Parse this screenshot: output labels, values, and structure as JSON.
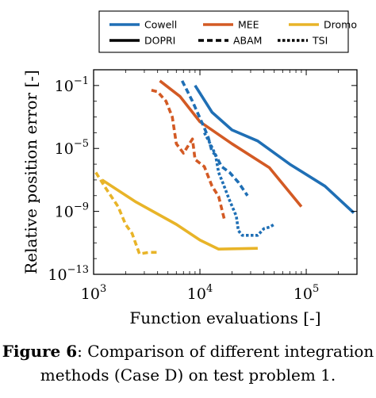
{
  "figure": {
    "caption_label": "Figure 6",
    "caption_text": ": Comparison of different integration methods (Case D) on test problem 1."
  },
  "chart_data": {
    "type": "line",
    "xlabel": "Function evaluations [-]",
    "ylabel": "Relative position error [-]",
    "xscale": "log",
    "yscale": "log",
    "xlim": [
      1000,
      300000
    ],
    "ylim": [
      1e-13,
      1
    ],
    "x_ticks": [
      {
        "value": 1000,
        "base": "10",
        "exp": "3"
      },
      {
        "value": 10000,
        "base": "10",
        "exp": "4"
      },
      {
        "value": 100000,
        "base": "10",
        "exp": "5"
      }
    ],
    "y_ticks": [
      {
        "value": 0.1,
        "base": "10",
        "exp": "−1"
      },
      {
        "value": 1e-05,
        "base": "10",
        "exp": "−5"
      },
      {
        "value": 1e-09,
        "base": "10",
        "exp": "−9"
      },
      {
        "value": 1e-13,
        "base": "10",
        "exp": "−13"
      }
    ],
    "grid": false,
    "legend_position": "top",
    "colors": {
      "Cowell": "#1f6fb5",
      "MEE": "#d35a24",
      "Dromo": "#e8b428"
    },
    "legend_methods": [
      "Cowell",
      "MEE",
      "Dromo"
    ],
    "legend_integrators": [
      "DOPRI",
      "ABAM",
      "TSI"
    ],
    "series": [
      {
        "method": "Cowell",
        "integrator": "DOPRI",
        "points": [
          [
            9000,
            0.1
          ],
          [
            13000,
            0.002
          ],
          [
            20000,
            0.00015
          ],
          [
            35000,
            3e-05
          ],
          [
            70000,
            1e-06
          ],
          [
            150000,
            4e-08
          ],
          [
            280000,
            8e-10
          ]
        ]
      },
      {
        "method": "MEE",
        "integrator": "DOPRI",
        "points": [
          [
            4200,
            0.2
          ],
          [
            6500,
            0.02
          ],
          [
            10000,
            0.0005
          ],
          [
            20000,
            2e-05
          ],
          [
            45000,
            6e-07
          ],
          [
            90000,
            2e-09
          ]
        ]
      },
      {
        "method": "Dromo",
        "integrator": "DOPRI",
        "points": [
          [
            1200,
            1e-07
          ],
          [
            2500,
            4e-09
          ],
          [
            6000,
            1.5e-10
          ],
          [
            10000,
            1.5e-11
          ],
          [
            15000,
            4e-12
          ],
          [
            35000,
            4.5e-12
          ]
        ]
      },
      {
        "method": "Cowell",
        "integrator": "ABAM",
        "points": [
          [
            6800,
            0.2
          ],
          [
            8500,
            0.01
          ],
          [
            11000,
            0.0002
          ],
          [
            12000,
            5e-05
          ],
          [
            13000,
            6e-06
          ],
          [
            14000,
            4e-06
          ],
          [
            16000,
            7e-07
          ],
          [
            19000,
            3e-07
          ],
          [
            23000,
            7e-08
          ],
          [
            28000,
            1e-08
          ]
        ]
      },
      {
        "method": "MEE",
        "integrator": "ABAM",
        "points": [
          [
            3500,
            0.05
          ],
          [
            4000,
            0.04
          ],
          [
            4800,
            0.01
          ],
          [
            5500,
            0.001
          ],
          [
            6000,
            2e-05
          ],
          [
            7000,
            5e-06
          ],
          [
            8500,
            4e-05
          ],
          [
            9000,
            2e-06
          ],
          [
            11000,
            7e-07
          ],
          [
            13000,
            4e-08
          ],
          [
            15000,
            9e-09
          ],
          [
            17000,
            3e-10
          ]
        ]
      },
      {
        "method": "Dromo",
        "integrator": "ABAM",
        "points": [
          [
            1050,
            3e-07
          ],
          [
            1300,
            3e-08
          ],
          [
            1700,
            2e-09
          ],
          [
            2000,
            1.5e-10
          ],
          [
            2300,
            4e-11
          ],
          [
            2700,
            2e-12
          ],
          [
            3300,
            2.5e-12
          ],
          [
            4000,
            2.5e-12
          ]
        ]
      },
      {
        "method": "Cowell",
        "integrator": "TSI",
        "points": [
          [
            11000,
            0.0001
          ],
          [
            12500,
            2e-05
          ],
          [
            14000,
            4e-06
          ],
          [
            15000,
            3e-07
          ],
          [
            16500,
            6e-08
          ],
          [
            19000,
            5e-09
          ],
          [
            22000,
            5e-10
          ],
          [
            23000,
            6e-11
          ],
          [
            25000,
            3e-11
          ],
          [
            30000,
            3e-11
          ],
          [
            35000,
            3e-11
          ],
          [
            40000,
            8e-11
          ],
          [
            45000,
            1e-10
          ],
          [
            50000,
            1.5e-10
          ]
        ]
      }
    ]
  }
}
